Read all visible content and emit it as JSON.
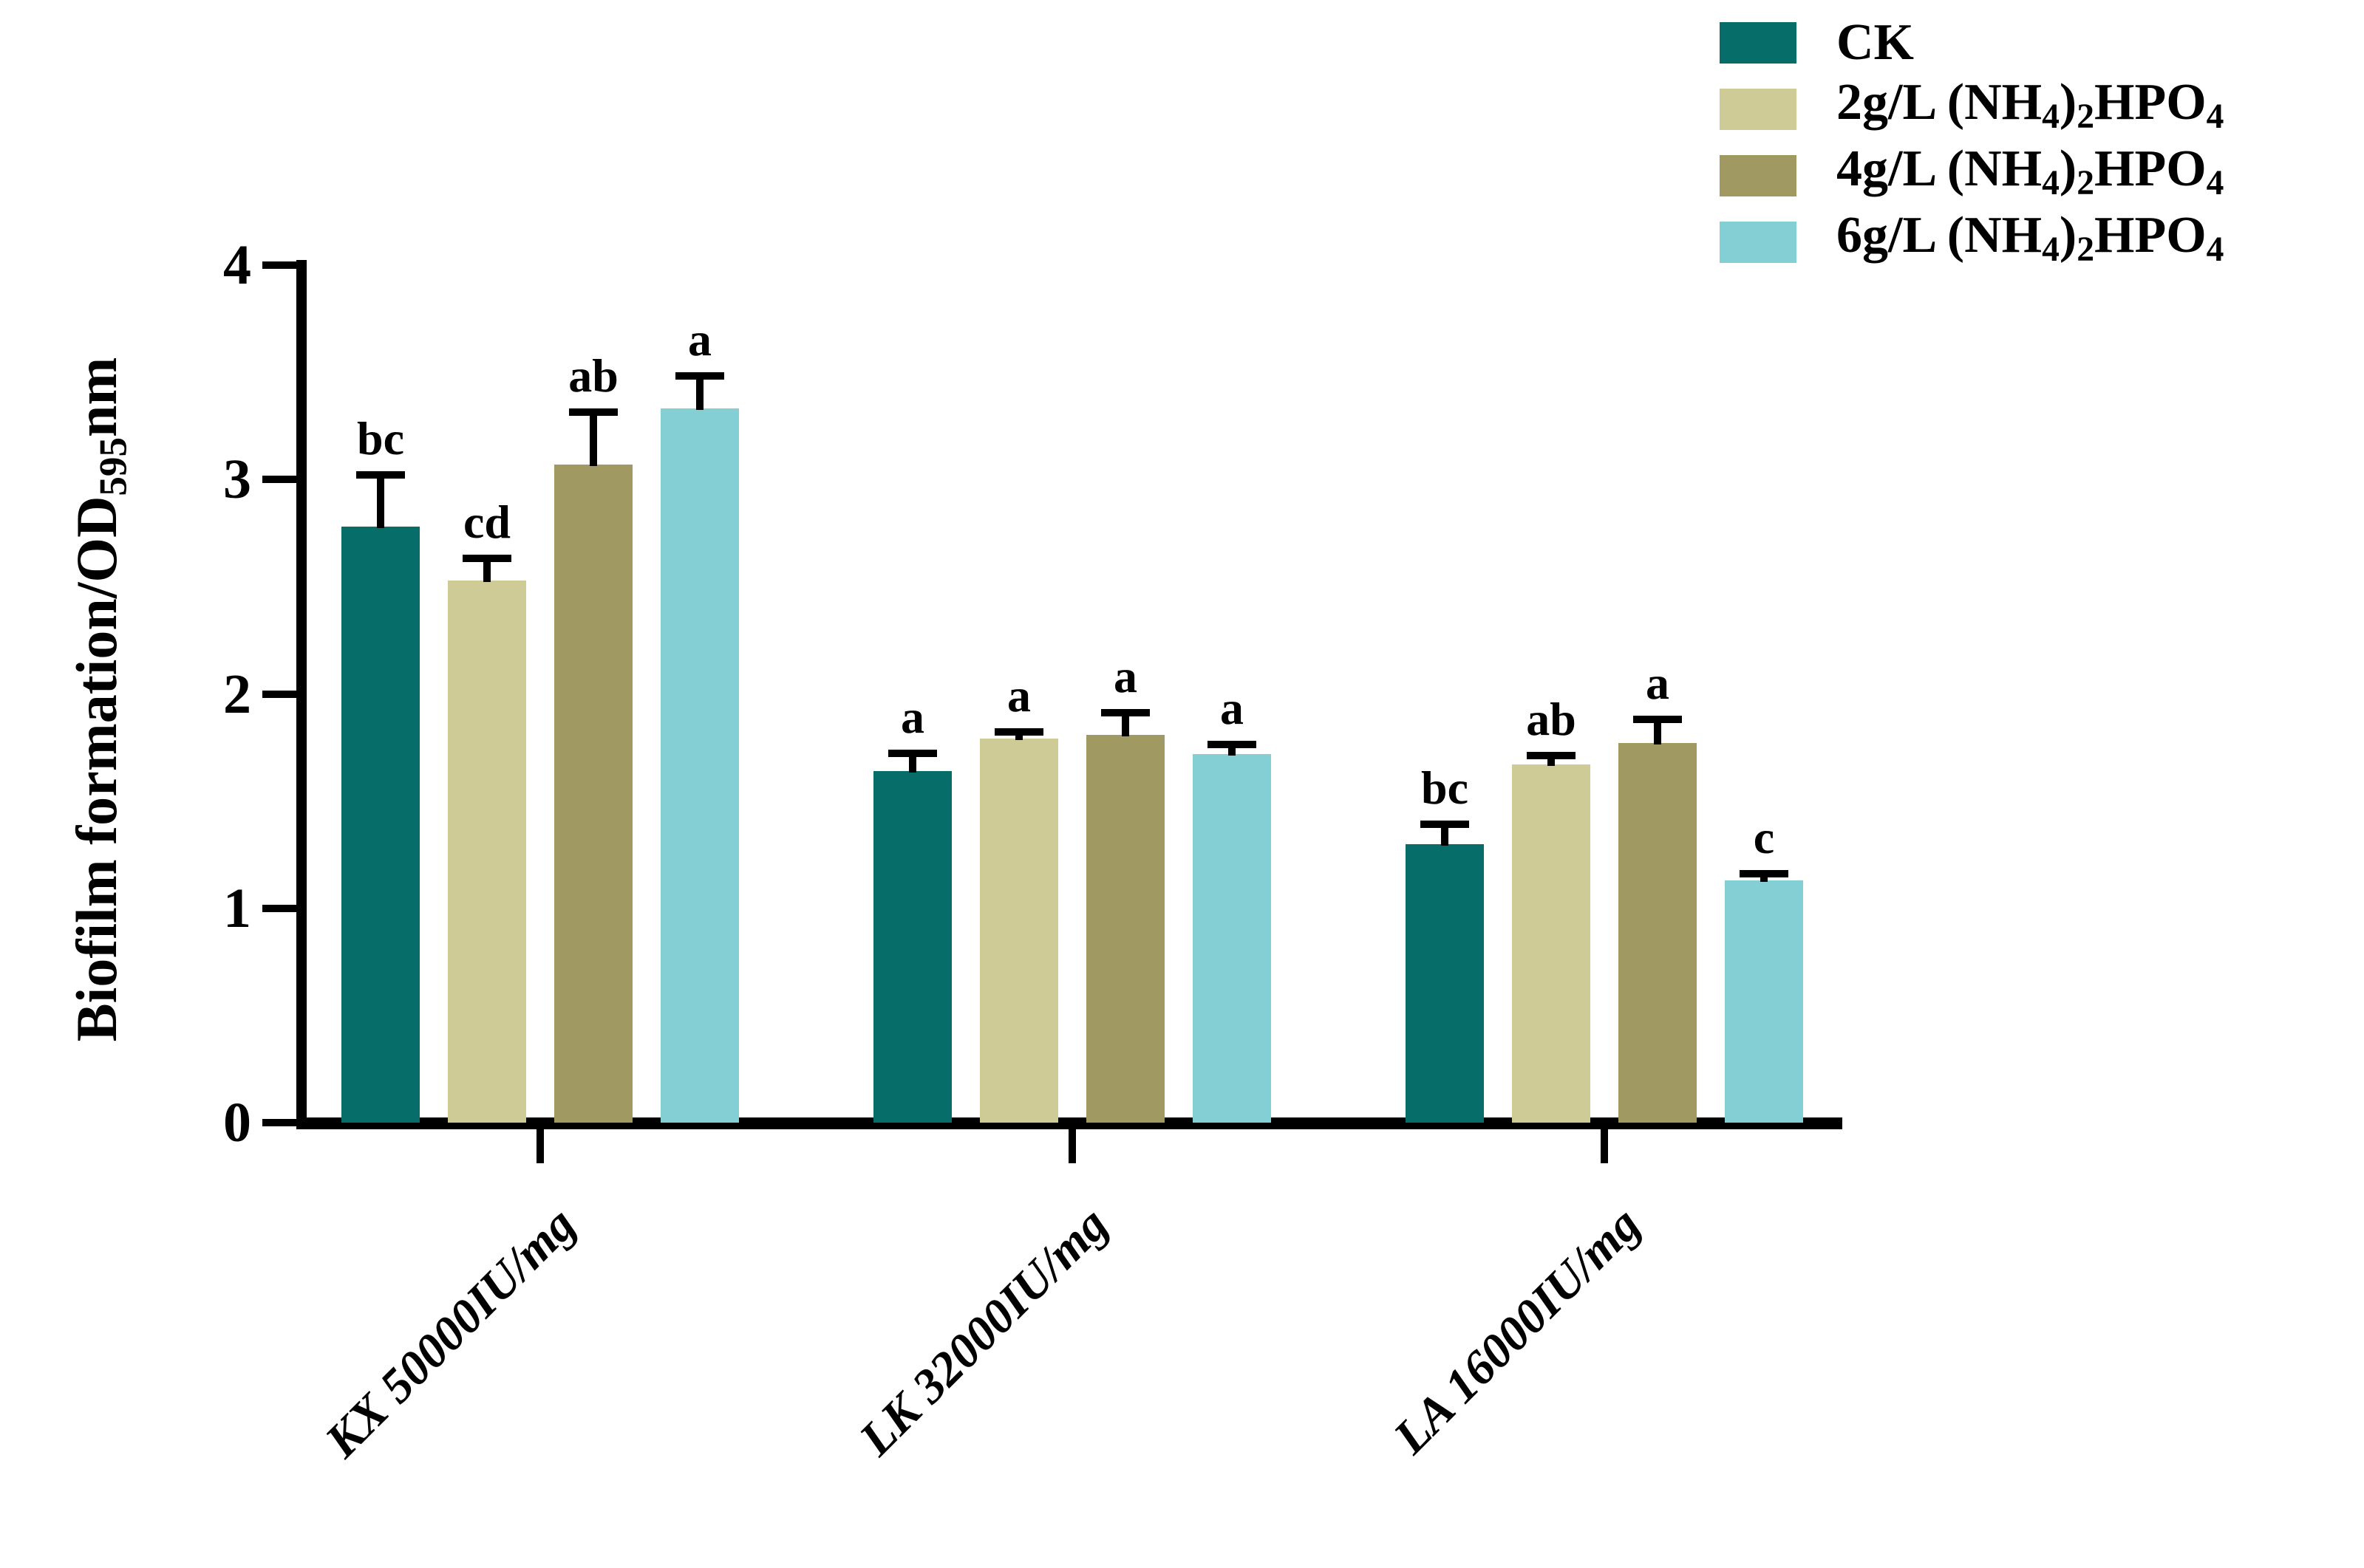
{
  "chart_data": {
    "type": "bar",
    "title": "",
    "xlabel": "",
    "ylabel": "Biofilm formation/OD595nm",
    "ylabel_segments": [
      [
        "t",
        "Biofilm formation/OD"
      ],
      [
        "s",
        "595"
      ],
      [
        "t",
        "nm"
      ]
    ],
    "ylim": [
      0,
      4
    ],
    "yticks": [
      "0",
      "1",
      "2",
      "3",
      "4"
    ],
    "grid": false,
    "legend_position": "top-right",
    "error_bars": "upper whisker with cap",
    "categories": [
      "KX 50000IU/mg",
      "LK 32000IU/mg",
      "LA 16000IU/mg"
    ],
    "series": [
      {
        "name": "CK",
        "name_segments": [
          [
            "t",
            "CK"
          ]
        ],
        "color": "#076D68",
        "values": [
          2.78,
          1.64,
          1.3
        ],
        "errors": [
          0.26,
          0.1,
          0.11
        ],
        "letters": [
          "bc",
          "a",
          "bc"
        ]
      },
      {
        "name": "2g/L (NH4)2HPO4",
        "name_segments": [
          [
            "t",
            "2g/L (NH"
          ],
          [
            "s",
            "4"
          ],
          [
            "t",
            ")"
          ],
          [
            "s",
            "2"
          ],
          [
            "t",
            "HPO"
          ],
          [
            "s",
            "4"
          ]
        ],
        "color": "#CFCB96",
        "values": [
          2.53,
          1.79,
          1.67
        ],
        "errors": [
          0.12,
          0.05,
          0.06
        ],
        "letters": [
          "cd",
          "a",
          "ab"
        ]
      },
      {
        "name": "4g/L (NH4)2HPO4",
        "name_segments": [
          [
            "t",
            "4g/L (NH"
          ],
          [
            "s",
            "4"
          ],
          [
            "t",
            ")"
          ],
          [
            "s",
            "2"
          ],
          [
            "t",
            "HPO"
          ],
          [
            "s",
            "4"
          ]
        ],
        "color": "#A09A62",
        "values": [
          3.07,
          1.81,
          1.77
        ],
        "errors": [
          0.26,
          0.12,
          0.13
        ],
        "letters": [
          "ab",
          "a",
          "a"
        ]
      },
      {
        "name": "6g/L (NH4)2HPO4",
        "name_segments": [
          [
            "t",
            "6g/L (NH"
          ],
          [
            "s",
            "4"
          ],
          [
            "t",
            ")"
          ],
          [
            "s",
            "2"
          ],
          [
            "t",
            "HPO"
          ],
          [
            "s",
            "4"
          ]
        ],
        "color": "#84CFD3",
        "values": [
          3.33,
          1.72,
          1.13
        ],
        "errors": [
          0.17,
          0.06,
          0.05
        ],
        "letters": [
          "a",
          "a",
          "c"
        ]
      }
    ]
  }
}
